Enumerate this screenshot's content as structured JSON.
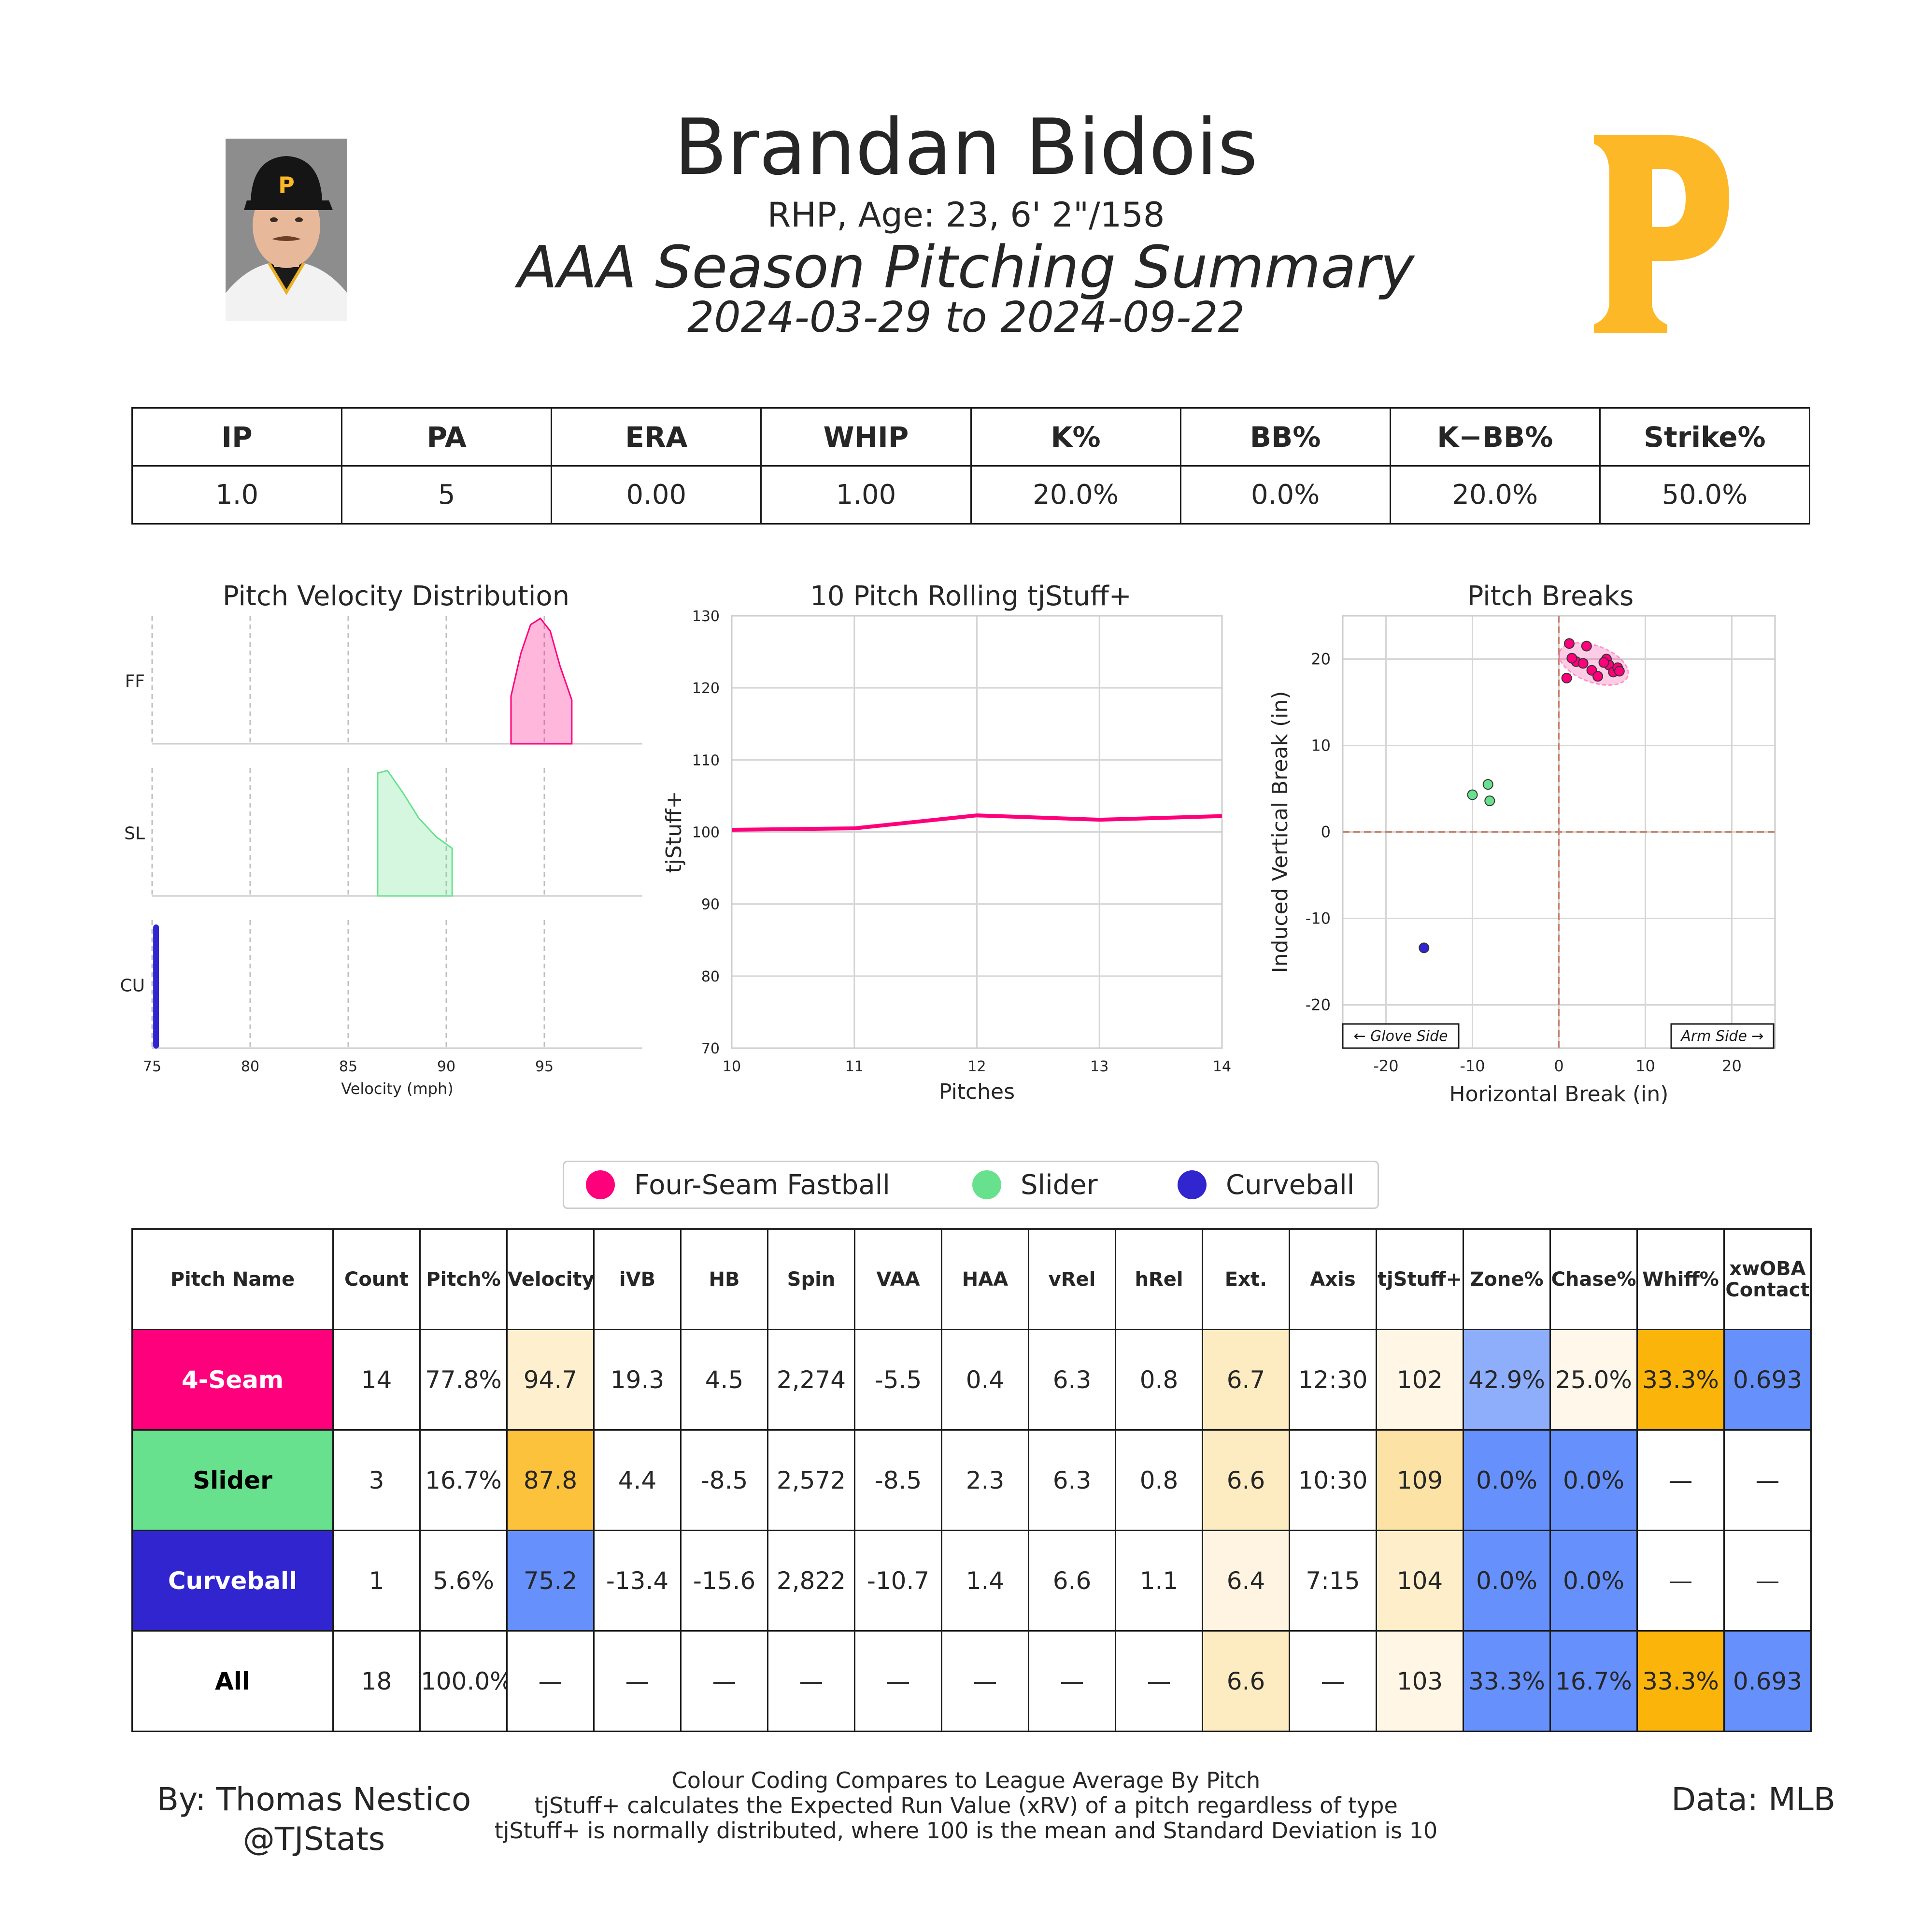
{
  "header": {
    "name": "Brandan Bidois",
    "bio": "RHP, Age: 23, 6' 2\"/158",
    "title": "AAA Season Pitching Summary",
    "date_range": "2024-03-29 to 2024-09-22",
    "logo_letter": "P"
  },
  "colors": {
    "four_seam": "#ff007d",
    "slider": "#67e18d",
    "curveball": "#3025ce",
    "logo_gold": "#FDB827"
  },
  "stat_table": {
    "headers": [
      "IP",
      "PA",
      "ERA",
      "WHIP",
      "K%",
      "BB%",
      "K−BB%",
      "Strike%"
    ],
    "values": [
      "1.0",
      "5",
      "0.00",
      "1.00",
      "20.0%",
      "0.0%",
      "20.0%",
      "50.0%"
    ]
  },
  "chart_data": [
    {
      "type": "area",
      "title": "Pitch Velocity Distribution",
      "xlabel": "Velocity (mph)",
      "ylabel": "",
      "xlim": [
        75,
        100
      ],
      "xticks": [
        75,
        80,
        85,
        90,
        95
      ],
      "series": [
        {
          "name": "FF",
          "x": [
            93.3,
            93.8,
            94.3,
            94.8,
            95.3,
            95.8,
            96.4
          ],
          "y": [
            0.38,
            0.72,
            0.95,
            1.0,
            0.9,
            0.62,
            0.35
          ]
        },
        {
          "name": "SL",
          "x": [
            86.5,
            87.0,
            87.8,
            88.6,
            89.5,
            90.3
          ],
          "y": [
            0.98,
            1.0,
            0.82,
            0.62,
            0.47,
            0.38
          ]
        },
        {
          "name": "CU",
          "x": [
            75.2
          ],
          "y": [
            1.0
          ]
        }
      ]
    },
    {
      "type": "line",
      "title": "10 Pitch Rolling tjStuff+",
      "xlabel": "Pitches",
      "ylabel": "tjStuff+",
      "xlim": [
        10,
        14
      ],
      "ylim": [
        70,
        130
      ],
      "xticks": [
        10,
        11,
        12,
        13,
        14
      ],
      "yticks": [
        70,
        80,
        90,
        100,
        110,
        120,
        130
      ],
      "x": [
        10,
        11,
        12,
        13,
        14
      ],
      "y": [
        100.3,
        100.5,
        102.3,
        101.7,
        102.2
      ]
    },
    {
      "type": "scatter",
      "title": "Pitch Breaks",
      "xlabel": "Horizontal Break (in)",
      "ylabel": "Induced Vertical Break (in)",
      "xlim": [
        -25,
        25
      ],
      "ylim": [
        -25,
        25
      ],
      "xticks": [
        -20,
        -10,
        0,
        10,
        20
      ],
      "yticks": [
        -20,
        -10,
        0,
        10,
        20
      ],
      "annotation_left": "← Glove Side",
      "annotation_right": "Arm Side →",
      "series": [
        {
          "name": "4-Seam",
          "x": [
            1.2,
            2.0,
            2.8,
            3.2,
            3.8,
            4.5,
            5.5,
            5.8,
            6.3,
            6.8,
            7.0,
            0.9,
            1.5,
            5.2
          ],
          "y": [
            21.8,
            19.7,
            19.5,
            21.5,
            18.7,
            18.0,
            20.0,
            19.3,
            18.5,
            19.0,
            18.6,
            17.8,
            20.1,
            19.6
          ]
        },
        {
          "name": "Slider",
          "x": [
            -10.0,
            -8.2,
            -8.0
          ],
          "y": [
            4.3,
            5.5,
            3.6
          ]
        },
        {
          "name": "Curveball",
          "x": [
            -15.6
          ],
          "y": [
            -13.4
          ]
        }
      ]
    }
  ],
  "legend": [
    "Four-Seam Fastball",
    "Slider",
    "Curveball"
  ],
  "pitch_table": {
    "headers": [
      "Pitch Name",
      "Count",
      "Pitch%",
      "Velocity",
      "iVB",
      "HB",
      "Spin",
      "VAA",
      "HAA",
      "vRel",
      "hRel",
      "Ext.",
      "Axis",
      "tjStuff+",
      "Zone%",
      "Chase%",
      "Whiff%",
      "xwOBA\nContact"
    ],
    "rows": [
      {
        "cells": [
          "4-Seam",
          "14",
          "77.8%",
          "94.7",
          "19.3",
          "4.5",
          "2,274",
          "-5.5",
          "0.4",
          "6.3",
          "0.8",
          "6.7",
          "12:30",
          "102",
          "42.9%",
          "25.0%",
          "33.3%",
          "0.693"
        ],
        "fills": [
          "#ff007d",
          "",
          "",
          "#fef0cf",
          "",
          "",
          "",
          "",
          "",
          "",
          "",
          "#fdebc2",
          "",
          "#fff6e6",
          "#8eaefc",
          "#fff8ea",
          "#fbb50a",
          "#6690fb"
        ],
        "name_color": "#ffffff"
      },
      {
        "cells": [
          "Slider",
          "3",
          "16.7%",
          "87.8",
          "4.4",
          "-8.5",
          "2,572",
          "-8.5",
          "2.3",
          "6.3",
          "0.8",
          "6.6",
          "10:30",
          "109",
          "0.0%",
          "0.0%",
          "—",
          "—"
        ],
        "fills": [
          "#67e18d",
          "",
          "",
          "#fcc23c",
          "",
          "",
          "",
          "",
          "",
          "",
          "",
          "#fdebc2",
          "",
          "#fde2a5",
          "#6690fb",
          "#6690fb",
          "",
          ""
        ],
        "name_color": "#000000"
      },
      {
        "cells": [
          "Curveball",
          "1",
          "5.6%",
          "75.2",
          "-13.4",
          "-15.6",
          "2,822",
          "-10.7",
          "1.4",
          "6.6",
          "1.1",
          "6.4",
          "7:15",
          "104",
          "0.0%",
          "0.0%",
          "—",
          "—"
        ],
        "fills": [
          "#3025ce",
          "",
          "",
          "#6690fb",
          "",
          "",
          "",
          "",
          "",
          "",
          "",
          "#fff4e2",
          "",
          "#feefca",
          "#6690fb",
          "#6690fb",
          "",
          ""
        ],
        "name_color": "#ffffff"
      },
      {
        "cells": [
          "All",
          "18",
          "100.0%",
          "—",
          "—",
          "—",
          "—",
          "—",
          "—",
          "—",
          "—",
          "6.6",
          "—",
          "103",
          "33.3%",
          "16.7%",
          "33.3%",
          "0.693"
        ],
        "fills": [
          "#ffffff",
          "",
          "",
          "",
          "",
          "",
          "",
          "",
          "",
          "",
          "",
          "#fdebc2",
          "",
          "#fff6e6",
          "#6690fb",
          "#6690fb",
          "#fbb50a",
          "#6690fb"
        ],
        "name_color": "#000000"
      }
    ]
  },
  "footer": {
    "author": "By: Thomas Nestico",
    "handle": "@TJStats",
    "notes": [
      "Colour Coding Compares to League Average By Pitch",
      "tjStuff+ calculates the Expected Run Value (xRV) of a pitch regardless of type",
      "tjStuff+ is normally distributed, where 100 is the mean and Standard Deviation is 10"
    ],
    "source": "Data: MLB"
  }
}
